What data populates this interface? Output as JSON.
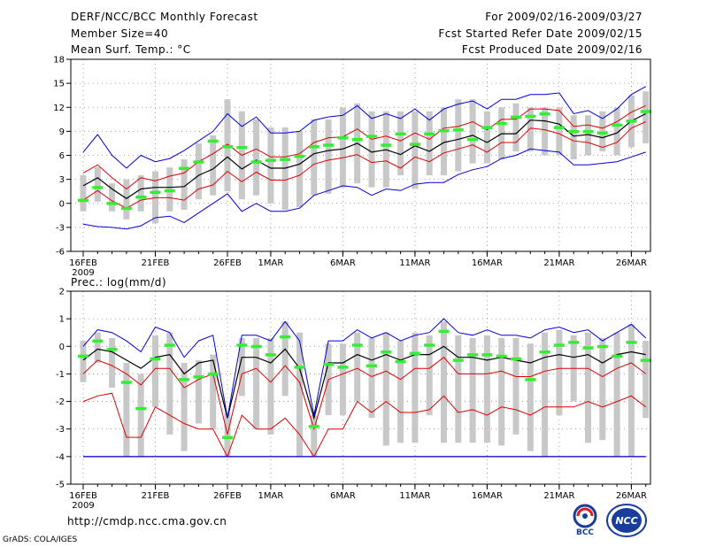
{
  "header": {
    "title": "DERF/NCC/BCC Monthly Forecast",
    "member_size": "Member Size=40",
    "variable": "Mean Surf. Temp.: °C",
    "period": "For 2009/02/16-2009/03/27",
    "refer_date": "Fcst Started Refer Date 2009/02/15",
    "produced_date": "Fcst Produced Date 2009/02/16"
  },
  "footer": {
    "url": "http://cmdp.ncc.cma.gov.cn",
    "credit": "GrADS: COLA/IGES",
    "logo_bcc_text": "BCC",
    "logo_ncc_text": "NCC"
  },
  "x_labels": [
    {
      "day": 0,
      "label": "16FEB",
      "sub": "2009"
    },
    {
      "day": 5,
      "label": "21FEB",
      "sub": ""
    },
    {
      "day": 10,
      "label": "26FEB",
      "sub": ""
    },
    {
      "day": 13,
      "label": "1MAR",
      "sub": ""
    },
    {
      "day": 18,
      "label": "6MAR",
      "sub": ""
    },
    {
      "day": 23,
      "label": "11MAR",
      "sub": ""
    },
    {
      "day": 28,
      "label": "16MAR",
      "sub": ""
    },
    {
      "day": 33,
      "label": "21MAR",
      "sub": ""
    },
    {
      "day": 38,
      "label": "26MAR",
      "sub": ""
    }
  ],
  "colors": {
    "box": "#c8c8c8",
    "mean": "#000000",
    "spread": "#dd0000",
    "extreme": "#0000dd",
    "marker": "#33ee33",
    "bottom_line": "#1a1ab0"
  },
  "chart_data": [
    {
      "type": "line",
      "title": "",
      "ylabel": "Mean Surf. Temp.: °C",
      "xlabel": "",
      "ylim": [
        -6,
        18
      ],
      "yticks": [
        -6,
        -3,
        0,
        3,
        6,
        9,
        12,
        15,
        18
      ],
      "grid": true,
      "days": [
        0,
        1,
        2,
        3,
        4,
        5,
        6,
        7,
        8,
        9,
        10,
        11,
        12,
        13,
        14,
        15,
        16,
        17,
        18,
        19,
        20,
        21,
        22,
        23,
        24,
        25,
        26,
        27,
        28,
        29,
        30,
        31,
        32,
        33,
        34,
        35,
        36,
        37,
        38,
        39
      ],
      "series": [
        {
          "name": "Mean",
          "values": [
            2.2,
            3.2,
            1.8,
            0.6,
            1.8,
            2.0,
            2.0,
            2.1,
            3.5,
            4.3,
            5.8,
            4.3,
            5.4,
            4.4,
            4.4,
            4.9,
            6.2,
            6.6,
            6.8,
            7.5,
            6.4,
            6.7,
            6.1,
            7.2,
            6.5,
            7.6,
            8.0,
            8.5,
            7.6,
            8.7,
            8.7,
            10.4,
            10.3,
            9.9,
            8.4,
            8.6,
            8.2,
            8.8,
            10.3,
            11.2
          ]
        },
        {
          "name": "Upper spread",
          "values": [
            3.8,
            4.8,
            3.2,
            1.8,
            3.2,
            2.8,
            3.4,
            3.8,
            5.2,
            6.2,
            7.4,
            6.0,
            6.8,
            5.8,
            5.8,
            6.2,
            7.6,
            8.2,
            8.3,
            9.3,
            8.0,
            8.4,
            7.8,
            8.8,
            8.0,
            9.4,
            9.6,
            10.2,
            9.2,
            10.5,
            10.5,
            11.8,
            11.8,
            11.6,
            9.6,
            9.8,
            9.4,
            10.2,
            11.4,
            12.2
          ]
        },
        {
          "name": "Lower spread",
          "values": [
            0.4,
            1.6,
            0.3,
            -0.6,
            0.4,
            0.7,
            0.7,
            0.4,
            1.8,
            2.3,
            4.0,
            2.7,
            3.9,
            2.9,
            2.9,
            3.5,
            4.9,
            5.4,
            5.7,
            6.1,
            5.1,
            5.3,
            4.4,
            5.8,
            5.2,
            6.3,
            6.8,
            7.3,
            6.4,
            7.6,
            7.6,
            9.4,
            9.2,
            8.7,
            7.8,
            7.6,
            7.0,
            7.6,
            9.4,
            10.2
          ]
        },
        {
          "name": "Maximum",
          "values": [
            6.4,
            8.6,
            6.0,
            4.4,
            6.0,
            5.2,
            5.6,
            6.6,
            7.8,
            9.0,
            11.2,
            9.6,
            10.8,
            8.8,
            8.8,
            9.0,
            10.4,
            10.8,
            11.0,
            12.2,
            10.6,
            11.2,
            10.6,
            11.8,
            10.4,
            11.8,
            12.4,
            12.8,
            11.8,
            13.0,
            13.0,
            13.6,
            13.6,
            13.8,
            11.2,
            11.6,
            10.6,
            11.8,
            13.6,
            14.6
          ]
        },
        {
          "name": "Minimum",
          "values": [
            -2.6,
            -2.9,
            -3.0,
            -3.2,
            -2.8,
            -1.8,
            -1.6,
            -2.4,
            -1.2,
            0.0,
            1.2,
            -1.0,
            0.0,
            -1.0,
            -1.0,
            -0.6,
            1.0,
            1.6,
            2.2,
            2.0,
            1.0,
            1.8,
            1.6,
            2.4,
            2.6,
            2.6,
            3.6,
            4.2,
            4.6,
            5.6,
            6.0,
            6.8,
            6.6,
            6.4,
            4.8,
            4.8,
            5.0,
            5.2,
            5.8,
            6.4
          ]
        }
      ],
      "boxes": {
        "low": [
          -1.0,
          0.2,
          -1.0,
          -2.0,
          -1.0,
          -2.5,
          -1.0,
          -0.8,
          0.5,
          1.0,
          1.5,
          0.5,
          1.0,
          0.0,
          -0.8,
          -0.5,
          1.0,
          1.2,
          2.0,
          2.5,
          2.0,
          2.0,
          3.5,
          1.8,
          3.5,
          3.5,
          4.0,
          5.0,
          5.0,
          5.5,
          6.5,
          6.5,
          6.0,
          6.0,
          5.5,
          6.0,
          6.5,
          6.0,
          7.0,
          7.5
        ],
        "high": [
          3.5,
          4.5,
          2.5,
          3.0,
          3.5,
          4.0,
          4.5,
          5.5,
          7.5,
          8.5,
          13.0,
          11.5,
          10.5,
          9.5,
          9.5,
          9.0,
          10.5,
          10.5,
          12.0,
          12.5,
          11.5,
          11.5,
          11.5,
          11.5,
          11.5,
          12.0,
          13.0,
          13.0,
          11.5,
          12.0,
          12.5,
          12.0,
          12.0,
          12.0,
          11.0,
          11.0,
          11.5,
          12.0,
          13.5,
          14.0
        ]
      },
      "markers": [
        0.4,
        2.0,
        0.0,
        -0.6,
        0.8,
        1.4,
        1.6,
        4.4,
        5.2,
        7.8,
        7.1,
        7.0,
        5.2,
        5.4,
        5.5,
        5.9,
        7.1,
        7.3,
        8.2,
        8.0,
        8.4,
        7.3,
        8.7,
        7.4,
        8.7,
        9.1,
        9.2,
        8.0,
        9.5,
        10.0,
        10.8,
        10.9,
        11.2,
        9.5,
        9.0,
        9.0,
        8.8,
        9.8,
        10.3,
        11.5
      ]
    },
    {
      "type": "line",
      "title": "",
      "ylabel": "Prec.: log(mm/d)",
      "xlabel": "",
      "ylim": [
        -5,
        2
      ],
      "yticks": [
        -5,
        -4,
        -3,
        -2,
        -1,
        0,
        1,
        2
      ],
      "grid": true,
      "days": [
        0,
        1,
        2,
        3,
        4,
        5,
        6,
        7,
        8,
        9,
        10,
        11,
        12,
        13,
        14,
        15,
        16,
        17,
        18,
        19,
        20,
        21,
        22,
        23,
        24,
        25,
        26,
        27,
        28,
        29,
        30,
        31,
        32,
        33,
        34,
        35,
        36,
        37,
        38,
        39
      ],
      "series": [
        {
          "name": "Mean",
          "values": [
            -0.5,
            -0.1,
            -0.2,
            -0.5,
            -0.8,
            -0.4,
            -0.3,
            -1.0,
            -0.6,
            -0.5,
            -2.6,
            -0.4,
            -0.4,
            -0.6,
            -0.1,
            -0.8,
            -2.6,
            -0.6,
            -0.6,
            -0.3,
            -0.5,
            -0.3,
            -0.5,
            -0.3,
            -0.3,
            0.0,
            -0.4,
            -0.4,
            -0.5,
            -0.4,
            -0.5,
            -0.6,
            -0.4,
            -0.3,
            -0.4,
            -0.3,
            -0.6,
            -0.3,
            -0.2,
            -0.3
          ]
        },
        {
          "name": "Upper spread",
          "values": [
            -1.0,
            -0.5,
            -0.7,
            -1.0,
            -1.4,
            -0.8,
            -0.8,
            -1.5,
            -1.2,
            -1.0,
            -3.2,
            -1.0,
            -0.8,
            -1.3,
            -0.7,
            -1.3,
            -3.0,
            -1.2,
            -1.0,
            -0.8,
            -1.1,
            -0.9,
            -1.2,
            -0.8,
            -0.8,
            -0.4,
            -1.0,
            -1.0,
            -1.0,
            -0.9,
            -1.1,
            -1.1,
            -0.9,
            -0.8,
            -0.8,
            -0.8,
            -1.1,
            -0.8,
            -0.6,
            -1.0
          ]
        },
        {
          "name": "Lower spread",
          "values": [
            -2.0,
            -1.8,
            -1.7,
            -3.3,
            -3.3,
            -2.2,
            -2.5,
            -2.8,
            -3.0,
            -3.0,
            -4.0,
            -2.5,
            -3.0,
            -3.0,
            -2.6,
            -3.2,
            -4.0,
            -3.0,
            -3.0,
            -2.0,
            -2.4,
            -2.0,
            -2.4,
            -2.4,
            -2.3,
            -1.8,
            -2.4,
            -2.3,
            -2.5,
            -2.2,
            -2.3,
            -2.5,
            -2.2,
            -2.2,
            -2.2,
            -2.0,
            -2.2,
            -2.0,
            -1.8,
            -2.2
          ]
        },
        {
          "name": "Maximum",
          "values": [
            0.0,
            0.6,
            0.5,
            0.2,
            -0.2,
            0.7,
            0.5,
            -0.4,
            0.2,
            0.4,
            -2.6,
            0.4,
            0.4,
            0.2,
            0.9,
            0.2,
            -2.5,
            0.2,
            0.2,
            0.6,
            0.3,
            0.5,
            0.2,
            0.4,
            0.5,
            1.0,
            0.5,
            0.4,
            0.6,
            0.4,
            0.4,
            0.3,
            0.6,
            0.7,
            0.5,
            0.6,
            0.2,
            0.5,
            0.8,
            0.3
          ]
        },
        {
          "name": "Minimum",
          "values": [
            -4.0,
            -4.0,
            -4.0,
            -4.0,
            -4.0,
            -4.0,
            -4.0,
            -4.0,
            -4.0,
            -4.0,
            -4.0,
            -4.0,
            -4.0,
            -4.0,
            -4.0,
            -4.0,
            -4.0,
            -4.0,
            -4.0,
            -4.0,
            -4.0,
            -4.0,
            -4.0,
            -4.0,
            -4.0,
            -4.0,
            -4.0,
            -4.0,
            -4.0,
            -4.0,
            -4.0,
            -4.0,
            -4.0,
            -4.0,
            -4.0,
            -4.0,
            -4.0,
            -4.0,
            -4.0,
            -4.0
          ]
        }
      ],
      "boxes": {
        "low": [
          -1.3,
          -0.6,
          -1.5,
          -4.0,
          -4.0,
          -2.2,
          -3.2,
          -3.8,
          -2.8,
          -3.0,
          -4.0,
          -1.8,
          -3.0,
          -3.2,
          -1.8,
          -4.0,
          -4.0,
          -2.5,
          -2.5,
          -2.0,
          -2.6,
          -3.6,
          -3.5,
          -3.5,
          -2.5,
          -3.5,
          -3.5,
          -3.5,
          -3.5,
          -3.6,
          -3.2,
          -3.8,
          -4.0,
          -2.5,
          -2.0,
          -3.5,
          -3.4,
          -4.0,
          -4.0,
          -2.6
        ],
        "high": [
          0.2,
          0.5,
          0.3,
          -0.6,
          -1.0,
          0.4,
          0.5,
          -0.6,
          -0.5,
          -0.3,
          -2.4,
          0.3,
          0.3,
          0.3,
          0.9,
          0.5,
          -2.5,
          0.1,
          0.1,
          0.5,
          0.3,
          0.5,
          0.2,
          0.5,
          0.4,
          0.9,
          0.4,
          0.3,
          0.4,
          0.3,
          0.3,
          0.1,
          0.5,
          0.6,
          0.4,
          0.5,
          0.3,
          0.5,
          0.8,
          0.2
        ]
      },
      "markers": [
        -0.35,
        0.2,
        -0.1,
        -1.3,
        -2.25,
        -0.45,
        0.05,
        -1.2,
        -1.1,
        -1.0,
        -3.3,
        0.05,
        0.0,
        -0.3,
        0.35,
        -0.75,
        -2.9,
        -0.65,
        -0.75,
        0.05,
        -0.7,
        -0.2,
        -0.55,
        -0.25,
        0.05,
        0.55,
        -0.5,
        -0.3,
        -0.3,
        -0.35,
        -0.45,
        -1.2,
        -0.2,
        0.05,
        0.15,
        -0.05,
        0.0,
        -0.35,
        0.15,
        -0.5
      ]
    }
  ]
}
